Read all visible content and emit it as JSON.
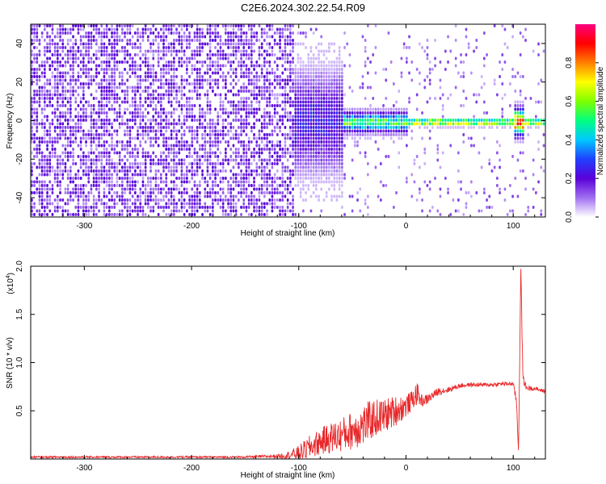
{
  "title": "C2E6.2024.302.22.54.R09",
  "colors": {
    "snr_line": "#e8282a",
    "spectrogram_low": "#7b1fe0",
    "frame": "#000000"
  },
  "chart_data": [
    {
      "type": "heatmap",
      "title": "",
      "xlabel": "Height of straight line (km)",
      "ylabel": "Frequency (Hz)",
      "xlim": [
        -350,
        130
      ],
      "ylim": [
        -50,
        50
      ],
      "x_ticks": [
        -300,
        -200,
        -100,
        0,
        100
      ],
      "x_tick_labels": [
        "-300",
        "-200",
        "-100",
        "0",
        "100"
      ],
      "y_ticks": [
        -40,
        -20,
        0,
        20,
        40
      ],
      "y_tick_labels": [
        "-40",
        "-20",
        "0",
        "20",
        "40"
      ],
      "colorbar": {
        "label": "Normalized spectral amplitude",
        "range": [
          0,
          1
        ],
        "ticks": [
          0.0,
          0.2,
          0.4,
          0.6,
          0.8
        ],
        "tick_labels": [
          "0.0",
          "0.2",
          "0.4",
          "0.6",
          "0.8"
        ],
        "colormap": [
          "#ffffff",
          "#a070f0",
          "#5a00d8",
          "#2040ff",
          "#00c8ff",
          "#00ff80",
          "#80ff00",
          "#ffff00",
          "#ff8000",
          "#ff0000",
          "#ff0080"
        ]
      },
      "features": [
        {
          "x_range": [
            -350,
            -105
          ],
          "freq_spread": 50,
          "amplitude": 0.15,
          "pattern": "broadband noise"
        },
        {
          "x_range": [
            -105,
            -60
          ],
          "freq_spread": 30,
          "amplitude": 0.25,
          "pattern": "narrowing noise"
        },
        {
          "x_range": [
            -60,
            0
          ],
          "freq_spread": 6,
          "amplitude": 0.55,
          "pattern": "band near 0 Hz"
        },
        {
          "x_range": [
            0,
            130
          ],
          "freq_spread": 2,
          "amplitude": 0.85,
          "pattern": "narrow band at 0 Hz"
        },
        {
          "x_range": [
            100,
            110
          ],
          "freq_spread": 8,
          "amplitude": 0.7,
          "pattern": "disturbance near 105 km"
        }
      ]
    },
    {
      "type": "line",
      "title": "",
      "xlabel": "Height of straight line (km)",
      "ylabel": "SNR (10 * v/v)",
      "y_multiplier_label": "(x10",
      "y_multiplier_exponent": "4",
      "y_multiplier_close": ")",
      "xlim": [
        -350,
        130
      ],
      "ylim": [
        0,
        2.0
      ],
      "x_ticks": [
        -300,
        -200,
        -100,
        0,
        100
      ],
      "x_tick_labels": [
        "-300",
        "-200",
        "-100",
        "0",
        "100"
      ],
      "y_ticks": [
        0.5,
        1.0,
        1.5,
        2.0
      ],
      "y_tick_labels": [
        "0.5",
        "1.0",
        "1.5",
        "2.0"
      ],
      "series": [
        {
          "x": [
            -350,
            -300,
            -250,
            -200,
            -150,
            -120,
            -110,
            -100,
            -90,
            -80,
            -70,
            -60,
            -50,
            -40,
            -30,
            -20,
            -10,
            0,
            5,
            10,
            15,
            20,
            30,
            40,
            50,
            60,
            70,
            80,
            90,
            100,
            103,
            105,
            107,
            109,
            112,
            120,
            130
          ],
          "y": [
            0.02,
            0.02,
            0.02,
            0.02,
            0.02,
            0.03,
            0.04,
            0.06,
            0.12,
            0.18,
            0.22,
            0.25,
            0.3,
            0.35,
            0.42,
            0.45,
            0.5,
            0.55,
            0.6,
            0.68,
            0.6,
            0.62,
            0.7,
            0.72,
            0.76,
            0.77,
            0.77,
            0.77,
            0.78,
            0.78,
            0.6,
            0.08,
            2.0,
            0.85,
            0.74,
            0.73,
            0.7
          ],
          "noise_amplitude": [
            0.01,
            0.01,
            0.01,
            0.01,
            0.01,
            0.02,
            0.04,
            0.08,
            0.12,
            0.14,
            0.16,
            0.18,
            0.2,
            0.22,
            0.2,
            0.18,
            0.16,
            0.12,
            0.1,
            0.12,
            0.06,
            0.05,
            0.04,
            0.03,
            0.025,
            0.02,
            0.02,
            0.02,
            0.02,
            0.02,
            0.05,
            0.04,
            0.1,
            0.05,
            0.03,
            0.02,
            0.02
          ]
        }
      ],
      "grid": false,
      "legend": "none"
    }
  ]
}
